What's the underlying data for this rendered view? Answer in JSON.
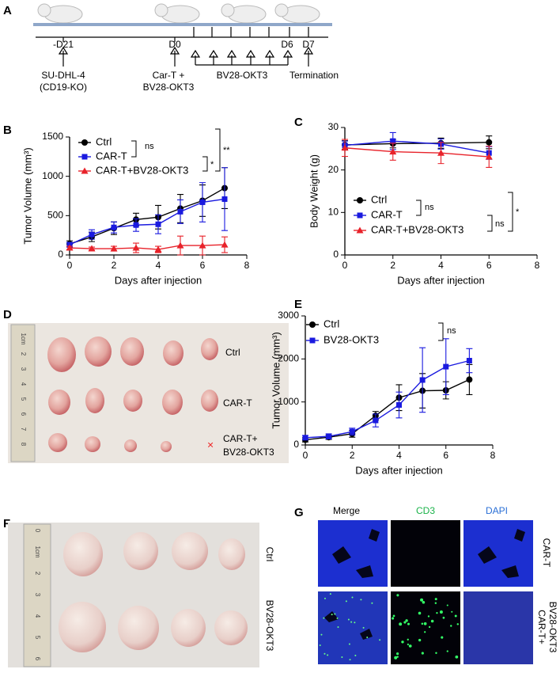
{
  "panel_labels": [
    "A",
    "B",
    "C",
    "D",
    "E",
    "F",
    "G"
  ],
  "timeline": {
    "days": [
      "-D21",
      "D0",
      "D6",
      "D7"
    ],
    "events": [
      "SU-DHL-4",
      "(CD19-KO)",
      "Car-T +",
      "BV28-OKT3",
      "BV28-OKT3",
      "Termination"
    ]
  },
  "chart_data": [
    {
      "type": "line",
      "ylabel": "Tumor Volume (mm³)",
      "xlabel": "Days after injection",
      "xlim": [
        0,
        8
      ],
      "xticks": [
        0,
        2,
        4,
        6,
        8
      ],
      "ylim": [
        0,
        1500
      ],
      "yticks": [
        0,
        500,
        1000,
        1500
      ],
      "x": [
        0,
        1,
        2,
        3,
        4,
        5,
        6,
        7
      ],
      "series": [
        {
          "name": "Ctrl",
          "color": "#000000",
          "marker": "circle",
          "values": [
            140,
            230,
            340,
            450,
            480,
            590,
            690,
            850
          ],
          "errors": [
            40,
            60,
            80,
            80,
            150,
            180,
            200,
            260
          ]
        },
        {
          "name": "CAR-T",
          "color": "#1a1adf",
          "marker": "square",
          "values": [
            130,
            260,
            350,
            380,
            390,
            550,
            670,
            710
          ],
          "errors": [
            30,
            60,
            70,
            80,
            120,
            150,
            250,
            400
          ]
        },
        {
          "name": "CAR-T+BV28-OKT3",
          "color": "#e8222a",
          "marker": "triangle",
          "values": [
            90,
            80,
            80,
            90,
            70,
            120,
            120,
            130
          ],
          "errors": [
            20,
            20,
            30,
            60,
            40,
            120,
            120,
            100
          ]
        }
      ],
      "annotations": [
        "ns",
        "*",
        "**"
      ]
    },
    {
      "type": "line",
      "ylabel": "Body Weight (g)",
      "xlabel": "Days after injection",
      "xlim": [
        0,
        8
      ],
      "xticks": [
        0,
        2,
        4,
        6,
        8
      ],
      "ylim": [
        0,
        30
      ],
      "yticks": [
        0,
        10,
        20,
        30
      ],
      "x": [
        0,
        2,
        4,
        6
      ],
      "series": [
        {
          "name": "Ctrl",
          "color": "#000000",
          "marker": "circle",
          "values": [
            25.9,
            26.2,
            26.3,
            26.5
          ],
          "errors": [
            1,
            1,
            1.2,
            1.5
          ]
        },
        {
          "name": "CAR-T",
          "color": "#1a1adf",
          "marker": "square",
          "values": [
            25.8,
            26.8,
            26.1,
            24.0
          ],
          "errors": [
            1,
            2,
            1.2,
            1.5
          ]
        },
        {
          "name": "CAR-T+BV28-OKT3",
          "color": "#e8222a",
          "marker": "triangle",
          "values": [
            25.2,
            24.3,
            24.0,
            23.1
          ],
          "errors": [
            2,
            2,
            2.5,
            2.5
          ]
        }
      ],
      "annotations": [
        "ns",
        "ns",
        "*"
      ]
    },
    {
      "type": "line",
      "ylabel": "Tumor Volume (mm³)",
      "xlabel": "Days after injection",
      "xlim": [
        0,
        8
      ],
      "xticks": [
        0,
        2,
        4,
        6,
        8
      ],
      "ylim": [
        0,
        3000
      ],
      "yticks": [
        0,
        1000,
        2000,
        3000
      ],
      "x": [
        0,
        1,
        2,
        3,
        4,
        5,
        6,
        7
      ],
      "series": [
        {
          "name": "Ctrl",
          "color": "#000000",
          "marker": "circle",
          "values": [
            120,
            180,
            260,
            680,
            1100,
            1260,
            1270,
            1520
          ],
          "errors": [
            50,
            50,
            80,
            100,
            300,
            400,
            200,
            350
          ]
        },
        {
          "name": "BV28-OKT3",
          "color": "#1a1adf",
          "marker": "square",
          "values": [
            170,
            200,
            310,
            570,
            930,
            1510,
            1820,
            1960
          ],
          "errors": [
            50,
            60,
            80,
            150,
            300,
            750,
            650,
            280
          ]
        }
      ],
      "annotations": [
        "ns"
      ]
    }
  ],
  "photo_d": {
    "rows": [
      "Ctrl",
      "CAR-T",
      "CAR-T+",
      "BV28-OKT3"
    ],
    "missing_mark": "×",
    "ruler_labels": [
      "1cm",
      "2",
      "3",
      "4",
      "5",
      "6",
      "7",
      "8"
    ]
  },
  "photo_f": {
    "rows": [
      "Ctrl",
      "BV28-OKT3"
    ],
    "ruler_labels": [
      "0",
      "1cm",
      "2",
      "3",
      "4",
      "5",
      "6"
    ]
  },
  "photo_g": {
    "columns": [
      "Merge",
      "CD3",
      "DAPI"
    ],
    "rows": [
      "CAR-T",
      "CAR-T+",
      "BV28-OKT3"
    ]
  }
}
